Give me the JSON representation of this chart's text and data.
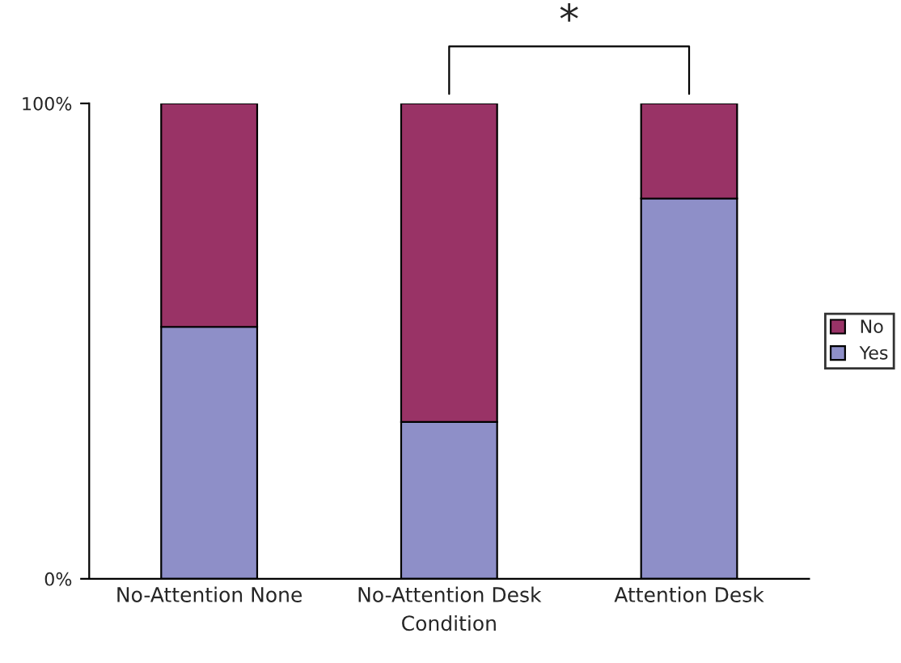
{
  "chart_data": {
    "type": "bar",
    "stacked": true,
    "xlabel": "Condition",
    "categories": [
      "No-Attention None",
      "No-Attention Desk",
      "Attention Desk"
    ],
    "series": [
      {
        "name": "Yes",
        "color": "#8e8fc8",
        "values": [
          53,
          33,
          80
        ]
      },
      {
        "name": "No",
        "color": "#993366",
        "values": [
          47,
          67,
          20
        ]
      }
    ],
    "ylim": [
      0,
      100
    ],
    "yticks": [
      {
        "value": 0,
        "label": "0%"
      },
      {
        "value": 100,
        "label": "100%"
      }
    ],
    "grid": false,
    "legend": "right",
    "annotations": [
      "*"
    ]
  }
}
